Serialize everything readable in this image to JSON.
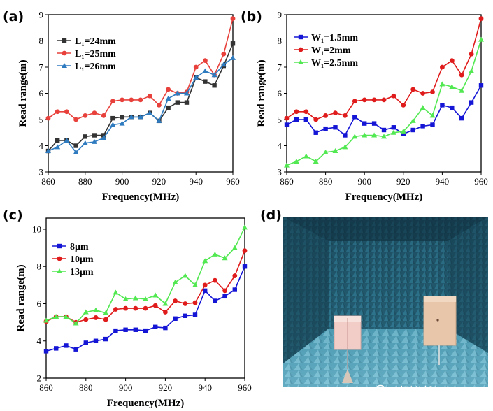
{
  "chart_data": [
    {
      "id": "a",
      "panel_label": "(a)",
      "type": "line",
      "xlabel": "Frequency(MHz)",
      "ylabel": "Read range(m)",
      "xlim": [
        860,
        960
      ],
      "ylim": [
        3,
        9
      ],
      "xticks": [
        860,
        880,
        900,
        920,
        940,
        960
      ],
      "yticks": [
        3,
        4,
        5,
        6,
        7,
        8,
        9
      ],
      "legend_position": "top-left",
      "x": [
        860,
        865,
        870,
        875,
        880,
        885,
        890,
        895,
        900,
        905,
        910,
        915,
        920,
        925,
        930,
        935,
        940,
        945,
        950,
        955,
        960
      ],
      "series": [
        {
          "name": "L₁=24mm",
          "color": "#333333",
          "marker": "square",
          "values": [
            3.8,
            4.2,
            4.2,
            4.0,
            4.35,
            4.4,
            4.4,
            5.05,
            5.1,
            5.1,
            5.1,
            5.25,
            4.95,
            5.45,
            5.65,
            5.65,
            6.6,
            6.45,
            6.3,
            7.05,
            7.9
          ]
        },
        {
          "name": "L₁=25mm",
          "color": "#e8413c",
          "marker": "circle",
          "values": [
            5.05,
            5.3,
            5.3,
            5.0,
            5.15,
            5.25,
            5.15,
            5.7,
            5.75,
            5.75,
            5.75,
            5.9,
            5.55,
            6.15,
            6.0,
            6.05,
            7.0,
            7.25,
            6.7,
            7.5,
            8.85
          ]
        },
        {
          "name": "L₁=26mm",
          "color": "#2f7bc0",
          "marker": "triangle",
          "values": [
            3.8,
            3.95,
            4.2,
            3.75,
            4.1,
            4.15,
            4.3,
            4.8,
            4.85,
            5.1,
            5.1,
            5.25,
            4.95,
            5.8,
            6.0,
            6.0,
            6.6,
            6.85,
            6.7,
            7.1,
            7.35
          ]
        }
      ]
    },
    {
      "id": "b",
      "panel_label": "(b)",
      "type": "line",
      "xlabel": "Frequency(MHz)",
      "ylabel": "Read range(m)",
      "xlim": [
        860,
        960
      ],
      "ylim": [
        3,
        9
      ],
      "xticks": [
        860,
        880,
        900,
        920,
        940,
        960
      ],
      "yticks": [
        3,
        4,
        5,
        6,
        7,
        8,
        9
      ],
      "legend_position": "top-left",
      "x": [
        860,
        865,
        870,
        875,
        880,
        885,
        890,
        895,
        900,
        905,
        910,
        915,
        920,
        925,
        930,
        935,
        940,
        945,
        950,
        955,
        960
      ],
      "series": [
        {
          "name": "W₁=1.5mm",
          "color": "#1515d6",
          "marker": "square",
          "values": [
            4.8,
            5.0,
            5.0,
            4.5,
            4.65,
            4.7,
            4.4,
            5.1,
            4.85,
            4.85,
            4.6,
            4.7,
            4.45,
            4.6,
            4.75,
            4.8,
            5.55,
            5.45,
            5.05,
            5.65,
            6.3
          ]
        },
        {
          "name": "W₁=2mm",
          "color": "#e01b1b",
          "marker": "circle",
          "values": [
            5.05,
            5.3,
            5.3,
            5.0,
            5.15,
            5.25,
            5.15,
            5.7,
            5.75,
            5.75,
            5.75,
            5.9,
            5.55,
            6.15,
            6.0,
            6.05,
            7.0,
            7.25,
            6.7,
            7.5,
            8.85
          ]
        },
        {
          "name": "W₁=2.5mm",
          "color": "#52e852",
          "marker": "triangle",
          "values": [
            3.25,
            3.4,
            3.6,
            3.4,
            3.75,
            3.8,
            3.95,
            4.35,
            4.4,
            4.4,
            4.35,
            4.5,
            4.55,
            4.95,
            5.45,
            5.15,
            6.35,
            6.25,
            6.1,
            6.85,
            8.05
          ]
        }
      ]
    },
    {
      "id": "c",
      "panel_label": "(c)",
      "type": "line",
      "xlabel": "Frequency(MHz)",
      "ylabel": "Read range(m)",
      "xlim": [
        860,
        960
      ],
      "ylim": [
        2,
        10.6
      ],
      "xticks": [
        860,
        880,
        900,
        920,
        940,
        960
      ],
      "yticks": [
        2,
        4,
        6,
        8,
        10
      ],
      "legend_position": "top-left",
      "x": [
        860,
        865,
        870,
        875,
        880,
        885,
        890,
        895,
        900,
        905,
        910,
        915,
        920,
        925,
        930,
        935,
        940,
        945,
        950,
        955,
        960
      ],
      "series": [
        {
          "name": "8μm",
          "color": "#1515d6",
          "marker": "square",
          "values": [
            3.45,
            3.6,
            3.75,
            3.55,
            3.9,
            4.0,
            4.1,
            4.55,
            4.6,
            4.6,
            4.55,
            4.75,
            4.7,
            5.2,
            5.35,
            5.4,
            6.7,
            6.15,
            6.4,
            6.75,
            8.0
          ]
        },
        {
          "name": "10μm",
          "color": "#e01b1b",
          "marker": "circle",
          "values": [
            5.05,
            5.3,
            5.3,
            5.0,
            5.15,
            5.25,
            5.15,
            5.7,
            5.75,
            5.75,
            5.75,
            5.9,
            5.55,
            6.15,
            6.0,
            6.05,
            7.0,
            7.25,
            6.7,
            7.5,
            8.85
          ]
        },
        {
          "name": "13μm",
          "color": "#52e852",
          "marker": "triangle",
          "values": [
            5.1,
            5.3,
            5.3,
            4.95,
            5.55,
            5.65,
            5.5,
            6.6,
            6.25,
            6.3,
            6.25,
            6.45,
            6.0,
            7.15,
            7.5,
            7.0,
            8.3,
            8.65,
            8.45,
            9.0,
            10.1
          ]
        }
      ]
    }
  ],
  "photo": {
    "panel_label": "(d)",
    "caption": "photo of anechoic chamber with tag and reader antenna"
  },
  "watermark": {
    "text": "材料分析与应用"
  }
}
